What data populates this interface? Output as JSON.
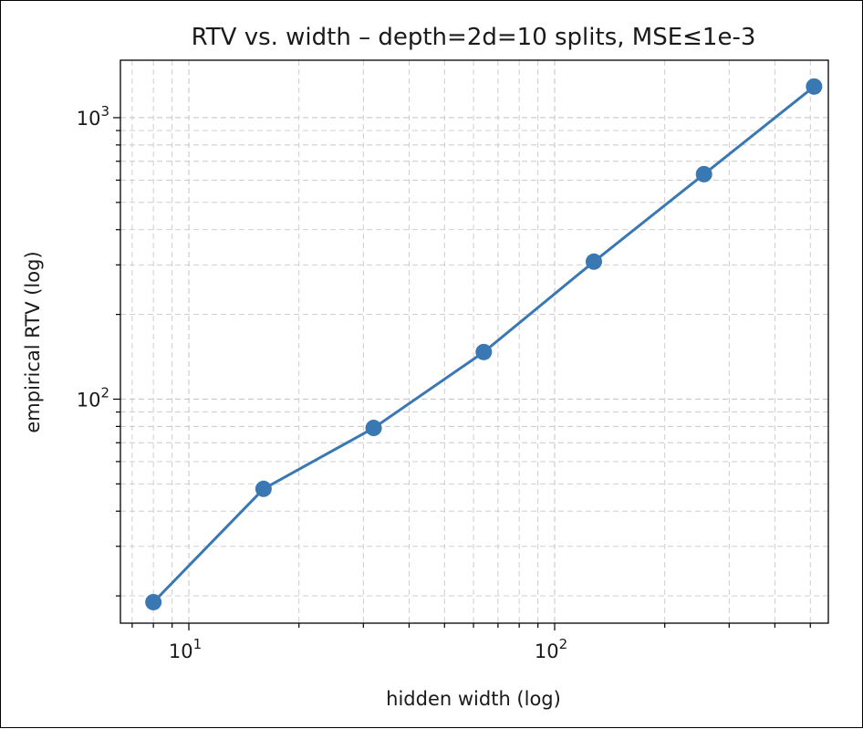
{
  "chart_data": {
    "type": "line",
    "title": "RTV vs. width  –  depth=2d=10 splits, MSE≤1e-3",
    "xlabel": "hidden width (log)",
    "ylabel": "empirical RTV (log)",
    "x_scale": "log",
    "y_scale": "log",
    "xlim": [
      6.5,
      560
    ],
    "ylim": [
      16,
      1600
    ],
    "grid": true,
    "legend": "none",
    "x_ticks": [
      {
        "value": 10,
        "base": "10",
        "exp": "1"
      },
      {
        "value": 100,
        "base": "10",
        "exp": "2"
      }
    ],
    "y_ticks": [
      {
        "value": 100,
        "base": "10",
        "exp": "2"
      },
      {
        "value": 1000,
        "base": "10",
        "exp": "3"
      }
    ],
    "series": [
      {
        "color": "#3a78b3",
        "x": [
          8,
          16,
          32,
          64,
          128,
          256,
          512
        ],
        "y": [
          19,
          48,
          79,
          147,
          308,
          630,
          1290
        ]
      }
    ]
  }
}
